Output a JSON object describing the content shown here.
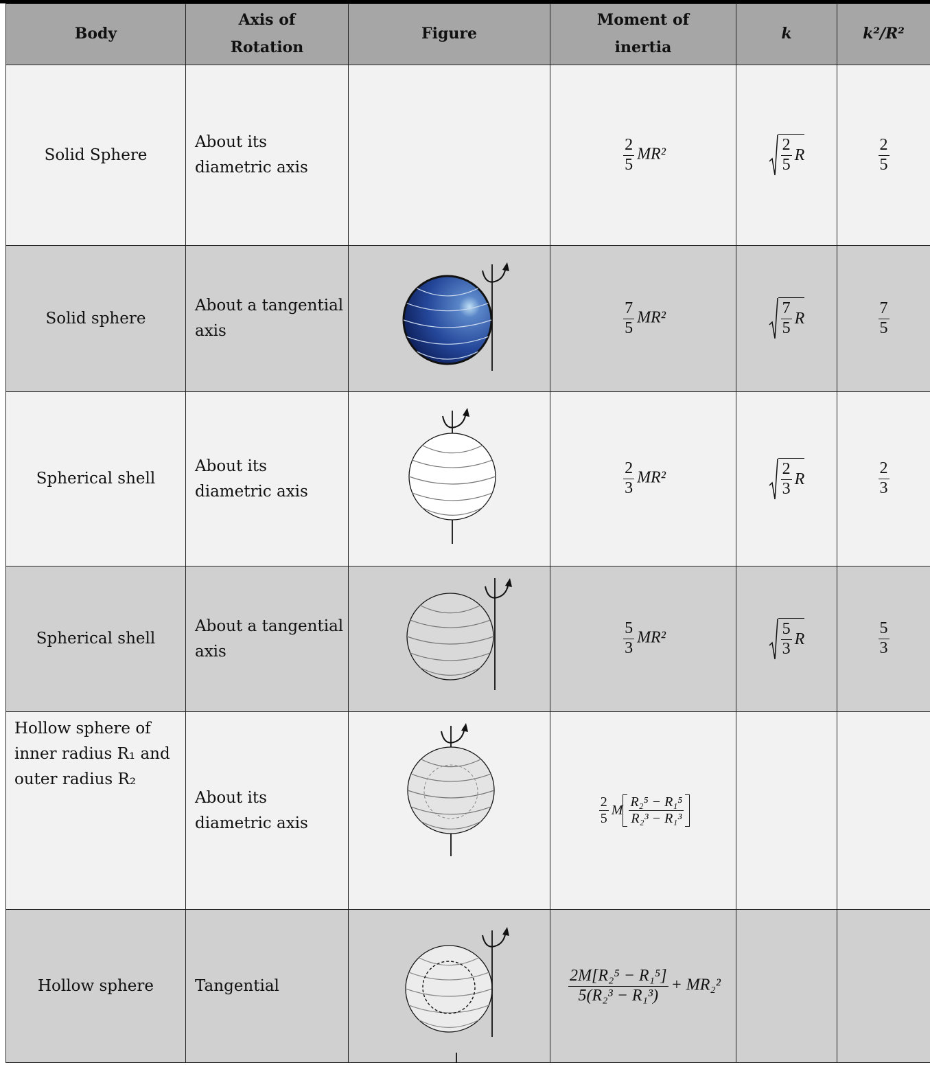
{
  "header": [
    "Body",
    "Axis of Rotation",
    "Figure",
    "Moment of inertia",
    "k",
    "k²/R²"
  ],
  "rows": [
    {
      "body": "Solid Sphere",
      "axis": "About its diametric axis",
      "moment": {
        "num": "2",
        "den": "5",
        "tail": "MR²"
      },
      "k": {
        "num": "2",
        "den": "5",
        "tail": "R"
      },
      "ratio": {
        "num": "2",
        "den": "5"
      }
    },
    {
      "body": "Solid sphere",
      "axis": "About a tangential axis",
      "moment": {
        "num": "7",
        "den": "5",
        "tail": "MR²"
      },
      "k": {
        "num": "7",
        "den": "5",
        "tail": "R"
      },
      "ratio": {
        "num": "7",
        "den": "5"
      }
    },
    {
      "body": "Spherical shell",
      "axis": "About its diametric axis",
      "moment": {
        "num": "2",
        "den": "3",
        "tail": "MR²"
      },
      "k": {
        "num": "2",
        "den": "3",
        "tail": "R"
      },
      "ratio": {
        "num": "2",
        "den": "3"
      }
    },
    {
      "body": "Spherical shell",
      "axis": "About a tangential axis",
      "moment": {
        "num": "5",
        "den": "3",
        "tail": "MR²"
      },
      "k": {
        "num": "5",
        "den": "3",
        "tail": "R"
      },
      "ratio": {
        "num": "5",
        "den": "3"
      }
    },
    {
      "body": "Hollow sphere of inner radius R₁ and outer radius R₂",
      "axis": "About its diametric axis",
      "moment": {
        "num": "2",
        "den": "5",
        "factor": "M",
        "inner_num": "R₂⁵ − R₁⁵",
        "inner_den": "R₂³ − R₁³"
      }
    },
    {
      "body": "Hollow sphere",
      "axis": "Tangential",
      "moment": {
        "num": "2M[R₂⁵ − R₁⁵]",
        "den": "5(R₂³ − R₁³)",
        "tail": "+ MR₂²"
      }
    }
  ]
}
